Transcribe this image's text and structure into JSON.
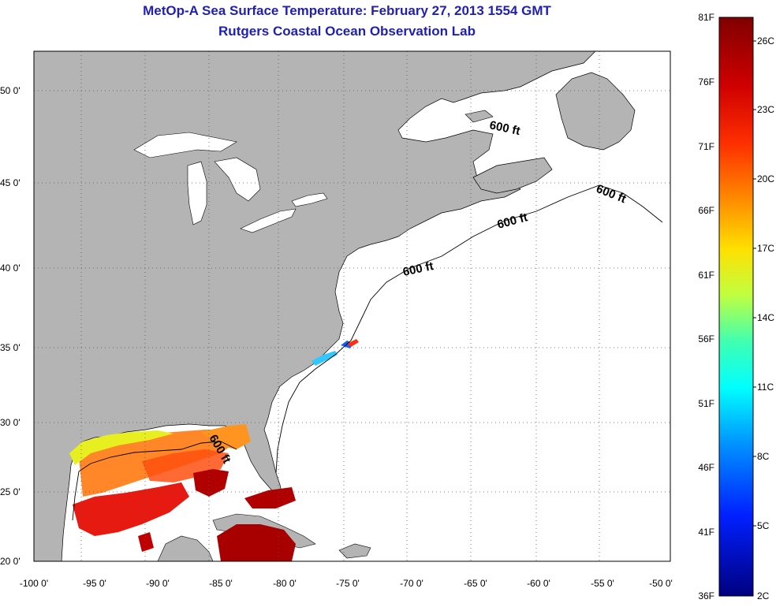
{
  "title": "MetOp-A Sea Surface Temperature:  February 27, 2013 1554 GMT",
  "subtitle": "Rutgers Coastal Ocean Observation Lab",
  "map": {
    "lon_range": [
      -100,
      -50
    ],
    "lat_range": [
      20,
      52.5
    ],
    "lon_ticks": [
      "-100 0'",
      "-95 0'",
      "-90 0'",
      "-85 0'",
      "-80 0'",
      "-75 0'",
      "-70 0'",
      "-65 0'",
      "-60 0'",
      "-55 0'",
      "-50 0'"
    ],
    "lat_ticks": [
      "20 0'",
      "25 0'",
      "30 0'",
      "35 0'",
      "40 0'",
      "45 0'",
      "50 0'"
    ],
    "land_color": "#b4b4b4",
    "ocean_color": "#ffffff",
    "grid": "dotted",
    "contour_label": "600 ft"
  },
  "colorbar": {
    "fahrenheit_labels": [
      "81F",
      "76F",
      "71F",
      "66F",
      "61F",
      "56F",
      "51F",
      "46F",
      "41F",
      "36F"
    ],
    "celsius_labels": [
      "26C",
      "23C",
      "20C",
      "17C",
      "14C",
      "11C",
      "8C",
      "5C",
      "2C"
    ],
    "colors": [
      "#800000",
      "#ff0000",
      "#ff8000",
      "#ffff00",
      "#80ff80",
      "#00ffff",
      "#0080ff",
      "#0000ff",
      "#000080"
    ]
  }
}
